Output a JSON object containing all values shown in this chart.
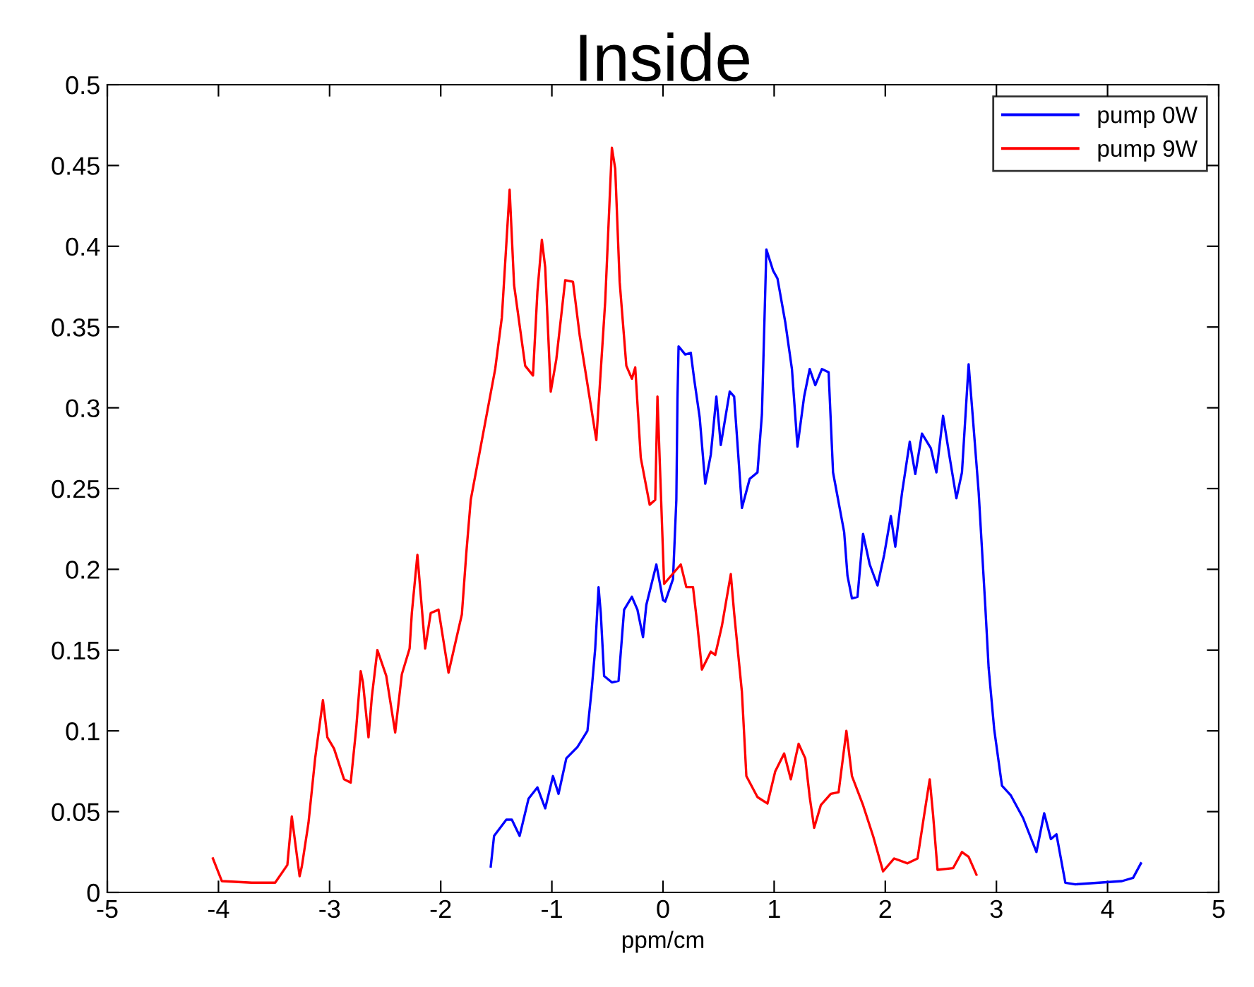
{
  "chart_data": {
    "type": "line",
    "title": "Inside",
    "xlabel": "ppm/cm",
    "xlim": [
      -5,
      5
    ],
    "xticks": [
      -5,
      -4,
      -3,
      -2,
      -1,
      0,
      1,
      2,
      3,
      4,
      5
    ],
    "ylim": [
      0,
      0.5
    ],
    "yticks": [
      0,
      0.05,
      0.1,
      0.15,
      0.2,
      0.25,
      0.3,
      0.35,
      0.4,
      0.45,
      0.5
    ],
    "grid": false,
    "legend": "top right",
    "marker": "none",
    "line_style": "solid",
    "series": [
      {
        "name": "pump 0W",
        "color": "#0000ff",
        "x": [
          -1.55,
          -1.52,
          -1.41,
          -1.36,
          -1.29,
          -1.21,
          -1.13,
          -1.06,
          -0.99,
          -0.94,
          -0.87,
          -0.77,
          -0.68,
          -0.64,
          -0.61,
          -0.58,
          -0.56,
          -0.53,
          -0.46,
          -0.4,
          -0.35,
          -0.28,
          -0.23,
          -0.18,
          -0.15,
          -0.06,
          0.0,
          0.02,
          0.09,
          0.12,
          0.13,
          0.14,
          0.2,
          0.25,
          0.28,
          0.33,
          0.38,
          0.43,
          0.48,
          0.52,
          0.6,
          0.64,
          0.68,
          0.71,
          0.78,
          0.85,
          0.89,
          0.93,
          0.99,
          1.03,
          1.1,
          1.16,
          1.21,
          1.27,
          1.32,
          1.37,
          1.43,
          1.49,
          1.53,
          1.63,
          1.66,
          1.7,
          1.75,
          1.8,
          1.86,
          1.93,
          1.99,
          2.05,
          2.09,
          2.15,
          2.22,
          2.27,
          2.33,
          2.41,
          2.46,
          2.52,
          2.58,
          2.64,
          2.69,
          2.75,
          2.79,
          2.84,
          2.9,
          2.93,
          2.98,
          3.05,
          3.13,
          3.24,
          3.36,
          3.43,
          3.49,
          3.54,
          3.62,
          3.71,
          4.13,
          4.23,
          4.3
        ],
        "values": [
          0.016,
          0.035,
          0.045,
          0.045,
          0.035,
          0.058,
          0.065,
          0.052,
          0.072,
          0.061,
          0.083,
          0.09,
          0.1,
          0.127,
          0.151,
          0.189,
          0.173,
          0.134,
          0.13,
          0.131,
          0.175,
          0.183,
          0.175,
          0.158,
          0.178,
          0.203,
          0.181,
          0.18,
          0.194,
          0.243,
          0.305,
          0.338,
          0.333,
          0.334,
          0.318,
          0.294,
          0.253,
          0.271,
          0.307,
          0.277,
          0.31,
          0.307,
          0.268,
          0.238,
          0.256,
          0.26,
          0.296,
          0.398,
          0.385,
          0.38,
          0.353,
          0.324,
          0.276,
          0.307,
          0.324,
          0.314,
          0.324,
          0.322,
          0.26,
          0.223,
          0.196,
          0.182,
          0.183,
          0.222,
          0.203,
          0.19,
          0.209,
          0.233,
          0.214,
          0.247,
          0.279,
          0.259,
          0.284,
          0.275,
          0.26,
          0.295,
          0.269,
          0.244,
          0.26,
          0.327,
          0.292,
          0.248,
          0.177,
          0.139,
          0.101,
          0.066,
          0.06,
          0.046,
          0.025,
          0.049,
          0.033,
          0.036,
          0.006,
          0.005,
          0.007,
          0.009,
          0.018
        ]
      },
      {
        "name": "pump 9W",
        "color": "#ff0000",
        "x": [
          -4.05,
          -3.97,
          -3.7,
          -3.49,
          -3.38,
          -3.34,
          -3.27,
          -3.25,
          -3.19,
          -3.13,
          -3.06,
          -3.02,
          -2.96,
          -2.87,
          -2.81,
          -2.76,
          -2.72,
          -2.7,
          -2.65,
          -2.62,
          -2.57,
          -2.49,
          -2.41,
          -2.35,
          -2.28,
          -2.26,
          -2.21,
          -2.14,
          -2.09,
          -2.02,
          -1.93,
          -1.81,
          -1.77,
          -1.73,
          -1.51,
          -1.45,
          -1.38,
          -1.34,
          -1.24,
          -1.17,
          -1.13,
          -1.09,
          -1.06,
          -1.01,
          -0.96,
          -0.88,
          -0.81,
          -0.75,
          -0.6,
          -0.52,
          -0.46,
          -0.43,
          -0.39,
          -0.33,
          -0.28,
          -0.25,
          -0.2,
          -0.12,
          -0.07,
          -0.05,
          0.01,
          0.16,
          0.21,
          0.27,
          0.31,
          0.35,
          0.43,
          0.47,
          0.53,
          0.61,
          0.64,
          0.71,
          0.75,
          0.85,
          0.94,
          1.01,
          1.09,
          1.15,
          1.22,
          1.28,
          1.32,
          1.36,
          1.42,
          1.51,
          1.58,
          1.65,
          1.7,
          1.8,
          1.89,
          1.98,
          2.08,
          2.2,
          2.29,
          2.35,
          2.4,
          2.43,
          2.47,
          2.61,
          2.69,
          2.75,
          2.82
        ],
        "values": [
          0.021,
          0.007,
          0.006,
          0.006,
          0.017,
          0.047,
          0.01,
          0.016,
          0.043,
          0.083,
          0.119,
          0.096,
          0.089,
          0.07,
          0.068,
          0.102,
          0.137,
          0.13,
          0.096,
          0.121,
          0.15,
          0.134,
          0.099,
          0.135,
          0.151,
          0.173,
          0.209,
          0.151,
          0.173,
          0.175,
          0.136,
          0.172,
          0.21,
          0.243,
          0.324,
          0.356,
          0.435,
          0.376,
          0.326,
          0.32,
          0.372,
          0.404,
          0.387,
          0.31,
          0.33,
          0.379,
          0.378,
          0.345,
          0.28,
          0.366,
          0.461,
          0.448,
          0.378,
          0.326,
          0.318,
          0.325,
          0.269,
          0.24,
          0.243,
          0.307,
          0.191,
          0.203,
          0.189,
          0.189,
          0.165,
          0.138,
          0.149,
          0.147,
          0.165,
          0.197,
          0.173,
          0.124,
          0.072,
          0.059,
          0.055,
          0.075,
          0.086,
          0.07,
          0.092,
          0.083,
          0.059,
          0.04,
          0.054,
          0.061,
          0.062,
          0.1,
          0.072,
          0.054,
          0.035,
          0.013,
          0.021,
          0.018,
          0.021,
          0.048,
          0.07,
          0.048,
          0.014,
          0.015,
          0.025,
          0.022,
          0.011
        ]
      }
    ]
  }
}
